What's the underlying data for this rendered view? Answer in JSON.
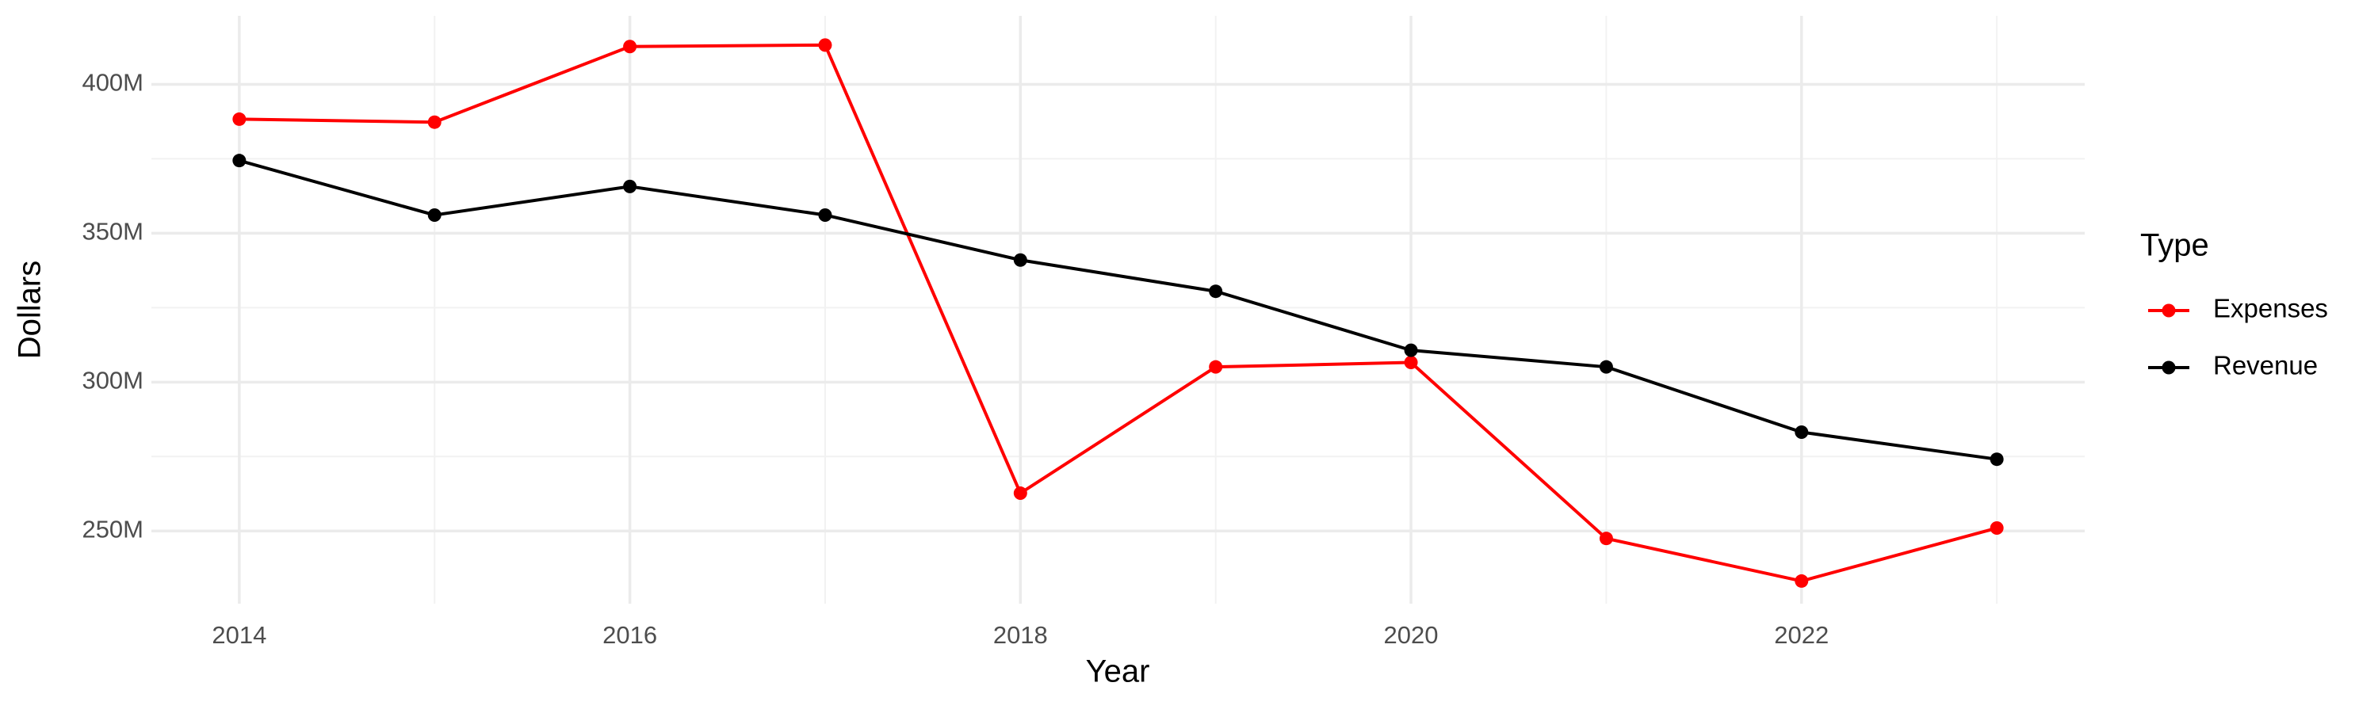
{
  "chart_data": {
    "type": "line",
    "title": null,
    "x_label": "Year",
    "y_label": "Dollars",
    "x": [
      2014,
      2015,
      2016,
      2017,
      2018,
      2019,
      2020,
      2021,
      2022,
      2023
    ],
    "series": [
      {
        "name": "Expenses",
        "color": "#ff0000",
        "values": [
          388300000,
          387300000,
          412700000,
          413200000,
          262700000,
          305100000,
          306600000,
          247500000,
          233200000,
          251000000
        ]
      },
      {
        "name": "Revenue",
        "color": "#000000",
        "values": [
          374400000,
          356100000,
          365700000,
          356100000,
          341000000,
          330500000,
          310700000,
          305100000,
          283200000,
          274100000
        ]
      }
    ],
    "xlim": [
      2013.55,
      2023.45
    ],
    "xticks": [
      2014,
      2016,
      2018,
      2020,
      2022
    ],
    "ylim": [
      225600000,
      423000000
    ],
    "yticks": [
      {
        "value": 250000000,
        "label": "250M"
      },
      {
        "value": 300000000,
        "label": "300M"
      },
      {
        "value": 350000000,
        "label": "350M"
      },
      {
        "value": 400000000,
        "label": "400M"
      }
    ],
    "grid": true,
    "legend_title": "Type",
    "legend_position": "right"
  }
}
